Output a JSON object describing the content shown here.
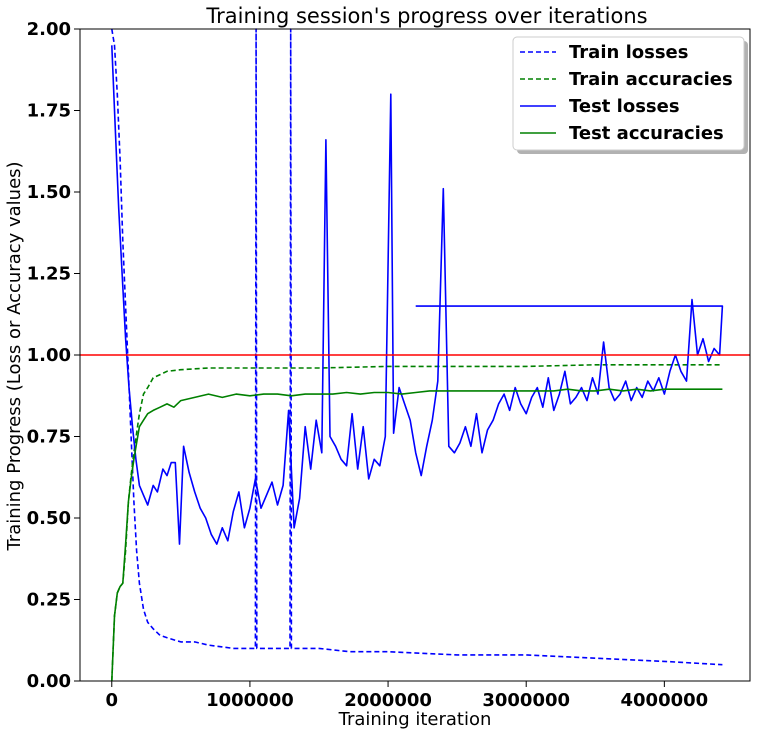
{
  "chart_data": {
    "type": "line",
    "title": "Training session's progress over iterations",
    "xlabel": "Training iteration",
    "ylabel": "Training Progress (Loss or Accuracy values)",
    "xlim": [
      -230000,
      4620000
    ],
    "ylim": [
      0,
      2.0
    ],
    "xticks": [
      0,
      1000000,
      2000000,
      3000000,
      4000000
    ],
    "xtick_labels": [
      "0",
      "1000000",
      "2000000",
      "3000000",
      "4000000"
    ],
    "yticks": [
      0,
      0.25,
      0.5,
      0.75,
      1.0,
      1.25,
      1.5,
      1.75,
      2.0
    ],
    "ytick_labels": [
      "0.00",
      "0.25",
      "0.50",
      "0.75",
      "1.00",
      "1.25",
      "1.50",
      "1.75",
      "2.00"
    ],
    "grid": false,
    "legend_position": "top-right",
    "reference_line": {
      "y": 1.0,
      "color": "#ff0000"
    },
    "series": [
      {
        "name": "Train losses",
        "style": "dashed",
        "color": "#0000ff",
        "x": [
          0,
          20000,
          40000,
          60000,
          80000,
          100000,
          120000,
          140000,
          160000,
          180000,
          200000,
          230000,
          260000,
          300000,
          350000,
          420000,
          500000,
          600000,
          700000,
          880000,
          1000000,
          1040000,
          1045000,
          1050000,
          1200000,
          1290000,
          1295000,
          1300000,
          1500000,
          1720000,
          2000000,
          2500000,
          3000000,
          3500000,
          4000000,
          4420000
        ],
        "y": [
          2.0,
          1.95,
          1.8,
          1.6,
          1.35,
          1.15,
          0.95,
          0.75,
          0.55,
          0.4,
          0.3,
          0.22,
          0.18,
          0.16,
          0.14,
          0.13,
          0.12,
          0.12,
          0.11,
          0.1,
          0.1,
          0.1,
          2.0,
          0.1,
          0.1,
          0.1,
          2.0,
          0.1,
          0.1,
          0.09,
          0.09,
          0.08,
          0.08,
          0.07,
          0.06,
          0.05
        ]
      },
      {
        "name": "Train accuracies",
        "style": "dashed",
        "color": "#008000",
        "x": [
          0,
          20000,
          40000,
          60000,
          80000,
          100000,
          120000,
          140000,
          160000,
          180000,
          200000,
          230000,
          260000,
          300000,
          350000,
          400000,
          500000,
          700000,
          1000000,
          1500000,
          2000000,
          2500000,
          3000000,
          3500000,
          4000000,
          4420000
        ],
        "y": [
          0.0,
          0.2,
          0.27,
          0.29,
          0.3,
          0.4,
          0.55,
          0.63,
          0.7,
          0.76,
          0.82,
          0.88,
          0.9,
          0.93,
          0.94,
          0.95,
          0.955,
          0.96,
          0.96,
          0.96,
          0.965,
          0.965,
          0.965,
          0.97,
          0.97,
          0.97
        ]
      },
      {
        "name": "Test losses",
        "style": "solid",
        "color": "#0000ff",
        "x": [
          0,
          25000,
          50000,
          75000,
          100000,
          125000,
          150000,
          175000,
          200000,
          230000,
          260000,
          300000,
          330000,
          370000,
          400000,
          430000,
          460000,
          490000,
          520000,
          560000,
          600000,
          640000,
          680000,
          720000,
          760000,
          800000,
          840000,
          880000,
          920000,
          960000,
          1000000,
          1040000,
          1080000,
          1120000,
          1160000,
          1200000,
          1240000,
          1280000,
          1320000,
          1360000,
          1400000,
          1440000,
          1480000,
          1520000,
          1550000,
          1580000,
          1620000,
          1660000,
          1700000,
          1740000,
          1780000,
          1820000,
          1860000,
          1900000,
          1940000,
          1980000,
          2020000,
          2040000,
          2080000,
          2120000,
          2160000,
          2200000,
          2240000,
          2280000,
          2320000,
          2360000,
          2400000,
          2440000,
          2480000,
          2520000,
          2560000,
          2600000,
          2640000,
          2680000,
          2720000,
          2760000,
          2800000,
          2840000,
          2880000,
          2920000,
          2960000,
          3000000,
          3040000,
          3080000,
          3120000,
          3160000,
          3200000,
          3240000,
          3280000,
          3320000,
          3360000,
          3400000,
          3440000,
          3480000,
          3520000,
          3560000,
          3600000,
          3640000,
          3680000,
          3720000,
          3760000,
          3800000,
          3840000,
          3880000,
          3920000,
          3960000,
          4000000,
          4040000,
          4080000,
          4120000,
          4160000,
          4200000,
          4240000,
          4280000,
          4320000,
          4360000,
          4400000,
          4420000,
          2200000
        ],
        "y": [
          1.95,
          1.7,
          1.45,
          1.25,
          1.05,
          0.9,
          0.78,
          0.68,
          0.6,
          0.57,
          0.54,
          0.6,
          0.58,
          0.65,
          0.63,
          0.67,
          0.67,
          0.42,
          0.72,
          0.64,
          0.58,
          0.53,
          0.5,
          0.45,
          0.42,
          0.47,
          0.43,
          0.52,
          0.58,
          0.47,
          0.53,
          0.62,
          0.53,
          0.57,
          0.61,
          0.54,
          0.6,
          0.83,
          0.47,
          0.56,
          0.78,
          0.65,
          0.8,
          0.7,
          1.66,
          0.75,
          0.72,
          0.68,
          0.66,
          0.82,
          0.65,
          0.78,
          0.62,
          0.68,
          0.66,
          0.75,
          1.8,
          0.76,
          0.9,
          0.85,
          0.8,
          0.7,
          0.63,
          0.72,
          0.8,
          0.92,
          1.51,
          0.72,
          0.7,
          0.73,
          0.78,
          0.72,
          0.82,
          0.7,
          0.77,
          0.8,
          0.85,
          0.88,
          0.83,
          0.9,
          0.85,
          0.82,
          0.87,
          0.9,
          0.84,
          0.93,
          0.83,
          0.88,
          0.95,
          0.85,
          0.87,
          0.9,
          0.86,
          0.93,
          0.88,
          1.04,
          0.9,
          0.86,
          0.88,
          0.92,
          0.86,
          0.9,
          0.87,
          0.92,
          0.89,
          0.93,
          0.88,
          0.95,
          1.0,
          0.95,
          0.92,
          1.17,
          1.0,
          1.05,
          0.98,
          1.02,
          1.0,
          1.15,
          1.15
        ]
      },
      {
        "name": "Test accuracies",
        "style": "solid",
        "color": "#008000",
        "x": [
          0,
          20000,
          40000,
          60000,
          80000,
          100000,
          120000,
          140000,
          160000,
          180000,
          200000,
          230000,
          260000,
          300000,
          350000,
          400000,
          450000,
          500000,
          600000,
          700000,
          800000,
          900000,
          1000000,
          1100000,
          1200000,
          1300000,
          1400000,
          1500000,
          1600000,
          1700000,
          1800000,
          1900000,
          2000000,
          2100000,
          2200000,
          2300000,
          2400000,
          2500000,
          2600000,
          2700000,
          2800000,
          2900000,
          3000000,
          3100000,
          3200000,
          3300000,
          3400000,
          3500000,
          3600000,
          3700000,
          3800000,
          3900000,
          4000000,
          4100000,
          4200000,
          4300000,
          4420000
        ],
        "y": [
          0.0,
          0.2,
          0.27,
          0.29,
          0.3,
          0.42,
          0.55,
          0.62,
          0.68,
          0.73,
          0.78,
          0.8,
          0.82,
          0.83,
          0.84,
          0.85,
          0.84,
          0.86,
          0.87,
          0.88,
          0.87,
          0.88,
          0.875,
          0.88,
          0.88,
          0.875,
          0.88,
          0.88,
          0.88,
          0.885,
          0.88,
          0.885,
          0.885,
          0.88,
          0.885,
          0.89,
          0.89,
          0.89,
          0.89,
          0.89,
          0.89,
          0.89,
          0.89,
          0.89,
          0.89,
          0.895,
          0.89,
          0.89,
          0.895,
          0.89,
          0.895,
          0.89,
          0.895,
          0.895,
          0.895,
          0.895,
          0.895
        ]
      }
    ]
  }
}
